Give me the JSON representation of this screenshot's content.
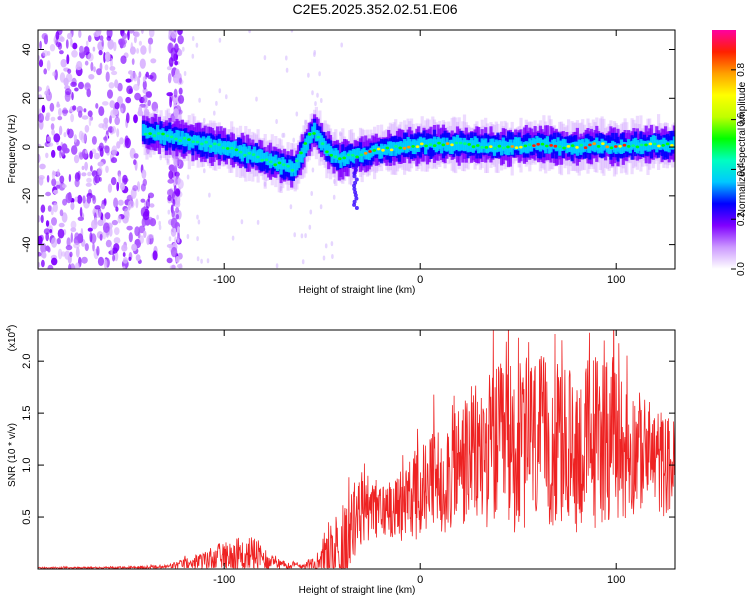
{
  "title": "C2E5.2025.352.02.51.E06",
  "chart_data": [
    {
      "type": "heatmap",
      "title": "C2E5.2025.352.02.51.E06",
      "xlabel": "Height of straight line (km)",
      "ylabel": "Frequency (Hz)",
      "xlim": [
        -195,
        130
      ],
      "ylim": [
        -50,
        48
      ],
      "xticks": [
        -100,
        0,
        100
      ],
      "yticks": [
        -40,
        -20,
        0,
        20,
        40
      ],
      "xtick_labels": [
        "-100",
        "0",
        "100"
      ],
      "ytick_labels": [
        "-40",
        "-20",
        "0",
        "20",
        "40"
      ],
      "colorbar": {
        "label": "Normalized spectral amplitude",
        "range": [
          0,
          0.96
        ],
        "ticks": [
          0.0,
          0.2,
          0.4,
          0.6,
          0.8
        ],
        "tick_labels": [
          "0.0",
          "0.2",
          "0.4",
          "0.6",
          "0.8"
        ],
        "colors": [
          "#ffffff",
          "#cc99ff",
          "#7f00ff",
          "#0000ff",
          "#00ffff",
          "#00ff00",
          "#ffff00",
          "#ff8800",
          "#ff0000",
          "#ff00aa"
        ]
      },
      "ridge": {
        "x": [
          -140,
          -120,
          -100,
          -80,
          -65,
          -55,
          -48,
          -42,
          -38,
          -30,
          -20,
          -10,
          0,
          20,
          40,
          60,
          80,
          90,
          100,
          115,
          130
        ],
        "freq": [
          6,
          3,
          0,
          -5,
          -9,
          7,
          -1,
          -5,
          -4,
          -3,
          -1,
          0,
          1,
          1,
          0,
          1,
          0,
          1,
          0,
          1,
          1
        ]
      }
    },
    {
      "type": "line",
      "xlabel": "Height of straight line (km)",
      "ylabel": "SNR (10 * v/v)",
      "scale_label": "(x10",
      "scale_exp": "4",
      "scale_close": ")",
      "xlim": [
        -195,
        130
      ],
      "ylim": [
        0,
        2.3
      ],
      "xticks": [
        -100,
        0,
        100
      ],
      "yticks": [
        0.5,
        1.0,
        1.5,
        2.0
      ],
      "xtick_labels": [
        "-100",
        "0",
        "100"
      ],
      "ytick_labels": [
        "0.5",
        "1.0",
        "1.5",
        "2.0"
      ],
      "series": [
        {
          "name": "SNR",
          "color": "#ee2222",
          "x": [
            -195,
            -160,
            -130,
            -120,
            -110,
            -100,
            -95,
            -90,
            -85,
            -80,
            -75,
            -70,
            -60,
            -50,
            -42,
            -38,
            -33,
            -28,
            -24,
            -20,
            -15,
            -10,
            -5,
            0,
            5,
            10,
            15,
            20,
            25,
            30,
            35,
            40,
            45,
            50,
            55,
            60,
            65,
            70,
            75,
            80,
            85,
            90,
            95,
            100,
            105,
            110,
            115,
            120,
            125,
            130
          ],
          "mean": [
            0.01,
            0.01,
            0.02,
            0.05,
            0.08,
            0.12,
            0.17,
            0.12,
            0.15,
            0.1,
            0.06,
            0.04,
            0.03,
            0.06,
            0.2,
            0.3,
            0.45,
            0.6,
            0.58,
            0.55,
            0.6,
            0.62,
            0.68,
            0.72,
            0.8,
            0.85,
            0.95,
            1.0,
            1.05,
            1.1,
            1.15,
            1.18,
            1.2,
            1.15,
            1.2,
            1.25,
            1.2,
            1.18,
            1.15,
            1.12,
            1.2,
            1.25,
            1.3,
            1.2,
            1.12,
            1.15,
            1.1,
            1.05,
            1.0,
            1.0
          ],
          "amp": [
            0.01,
            0.01,
            0.02,
            0.05,
            0.1,
            0.15,
            0.2,
            0.15,
            0.18,
            0.12,
            0.06,
            0.04,
            0.03,
            0.15,
            0.4,
            0.45,
            0.4,
            0.35,
            0.3,
            0.28,
            0.3,
            0.35,
            0.4,
            0.45,
            0.5,
            0.55,
            0.6,
            0.65,
            0.7,
            0.72,
            0.75,
            0.8,
            0.8,
            0.85,
            0.85,
            0.85,
            0.8,
            0.8,
            0.8,
            0.78,
            0.85,
            0.9,
            0.85,
            0.8,
            0.7,
            0.6,
            0.55,
            0.55,
            0.5,
            0.45
          ]
        }
      ]
    }
  ]
}
